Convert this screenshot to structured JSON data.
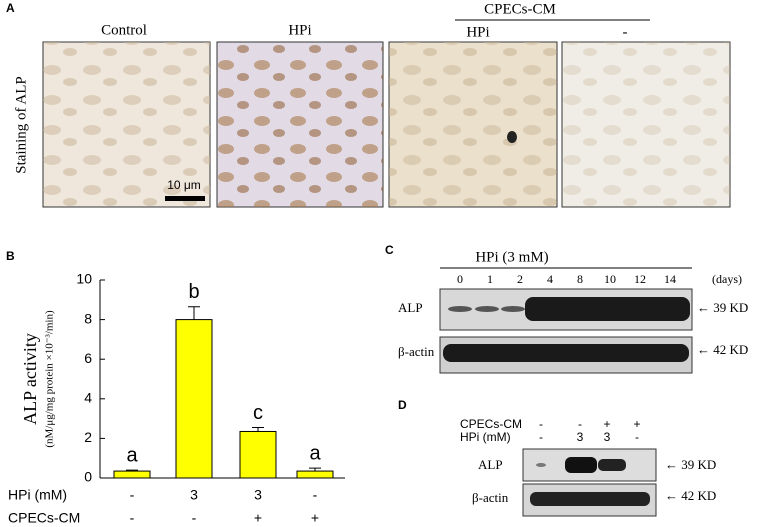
{
  "panel_a": {
    "label": "A",
    "row_label": "Staining of ALP",
    "group_label": "CPECs-CM",
    "columns": [
      "Control",
      "HPi",
      "HPi",
      "-"
    ],
    "scale_bar": "10 μm"
  },
  "chart_data": {
    "type": "bar",
    "label": "B",
    "ylabel": "ALP activity",
    "ylabel_sub": "(nM/μg/mg protein ×10⁻³/min)",
    "categories": [
      null,
      null,
      null,
      null
    ],
    "values": [
      0.35,
      8,
      2.35,
      0.35
    ],
    "errors": [
      0.05,
      0.65,
      0.2,
      0.15
    ],
    "annotations": [
      "a",
      "b",
      "c",
      "a"
    ],
    "color": "#ffff00",
    "conditions": [
      {
        "name": "HPi (mM)",
        "values": [
          "-",
          "3",
          "3",
          "-"
        ]
      },
      {
        "name": "CPECs-CM",
        "values": [
          "-",
          "-",
          "+",
          "+"
        ]
      }
    ],
    "ylim": [
      0,
      10
    ],
    "yticks": [
      0,
      2,
      4,
      6,
      8,
      10
    ]
  },
  "panel_c": {
    "label": "C",
    "title": "HPi (3 mM)",
    "lanes": [
      "0",
      "1",
      "2",
      "4",
      "8",
      "10",
      "12",
      "14"
    ],
    "unit": "(days)",
    "rows": [
      {
        "name": "ALP",
        "size": "← 39 KD"
      },
      {
        "name": "β-actin",
        "size": "← 42 KD"
      }
    ]
  },
  "panel_d": {
    "label": "D",
    "conditions": [
      {
        "name": "CPECs-CM",
        "values": [
          "-",
          "-",
          "+",
          "+"
        ]
      },
      {
        "name": "HPi (mM)",
        "values": [
          "-",
          "3",
          "3",
          "-"
        ]
      }
    ],
    "rows": [
      {
        "name": "ALP",
        "size": "← 39 KD"
      },
      {
        "name": "β-actin",
        "size": "← 42 KD"
      }
    ]
  }
}
